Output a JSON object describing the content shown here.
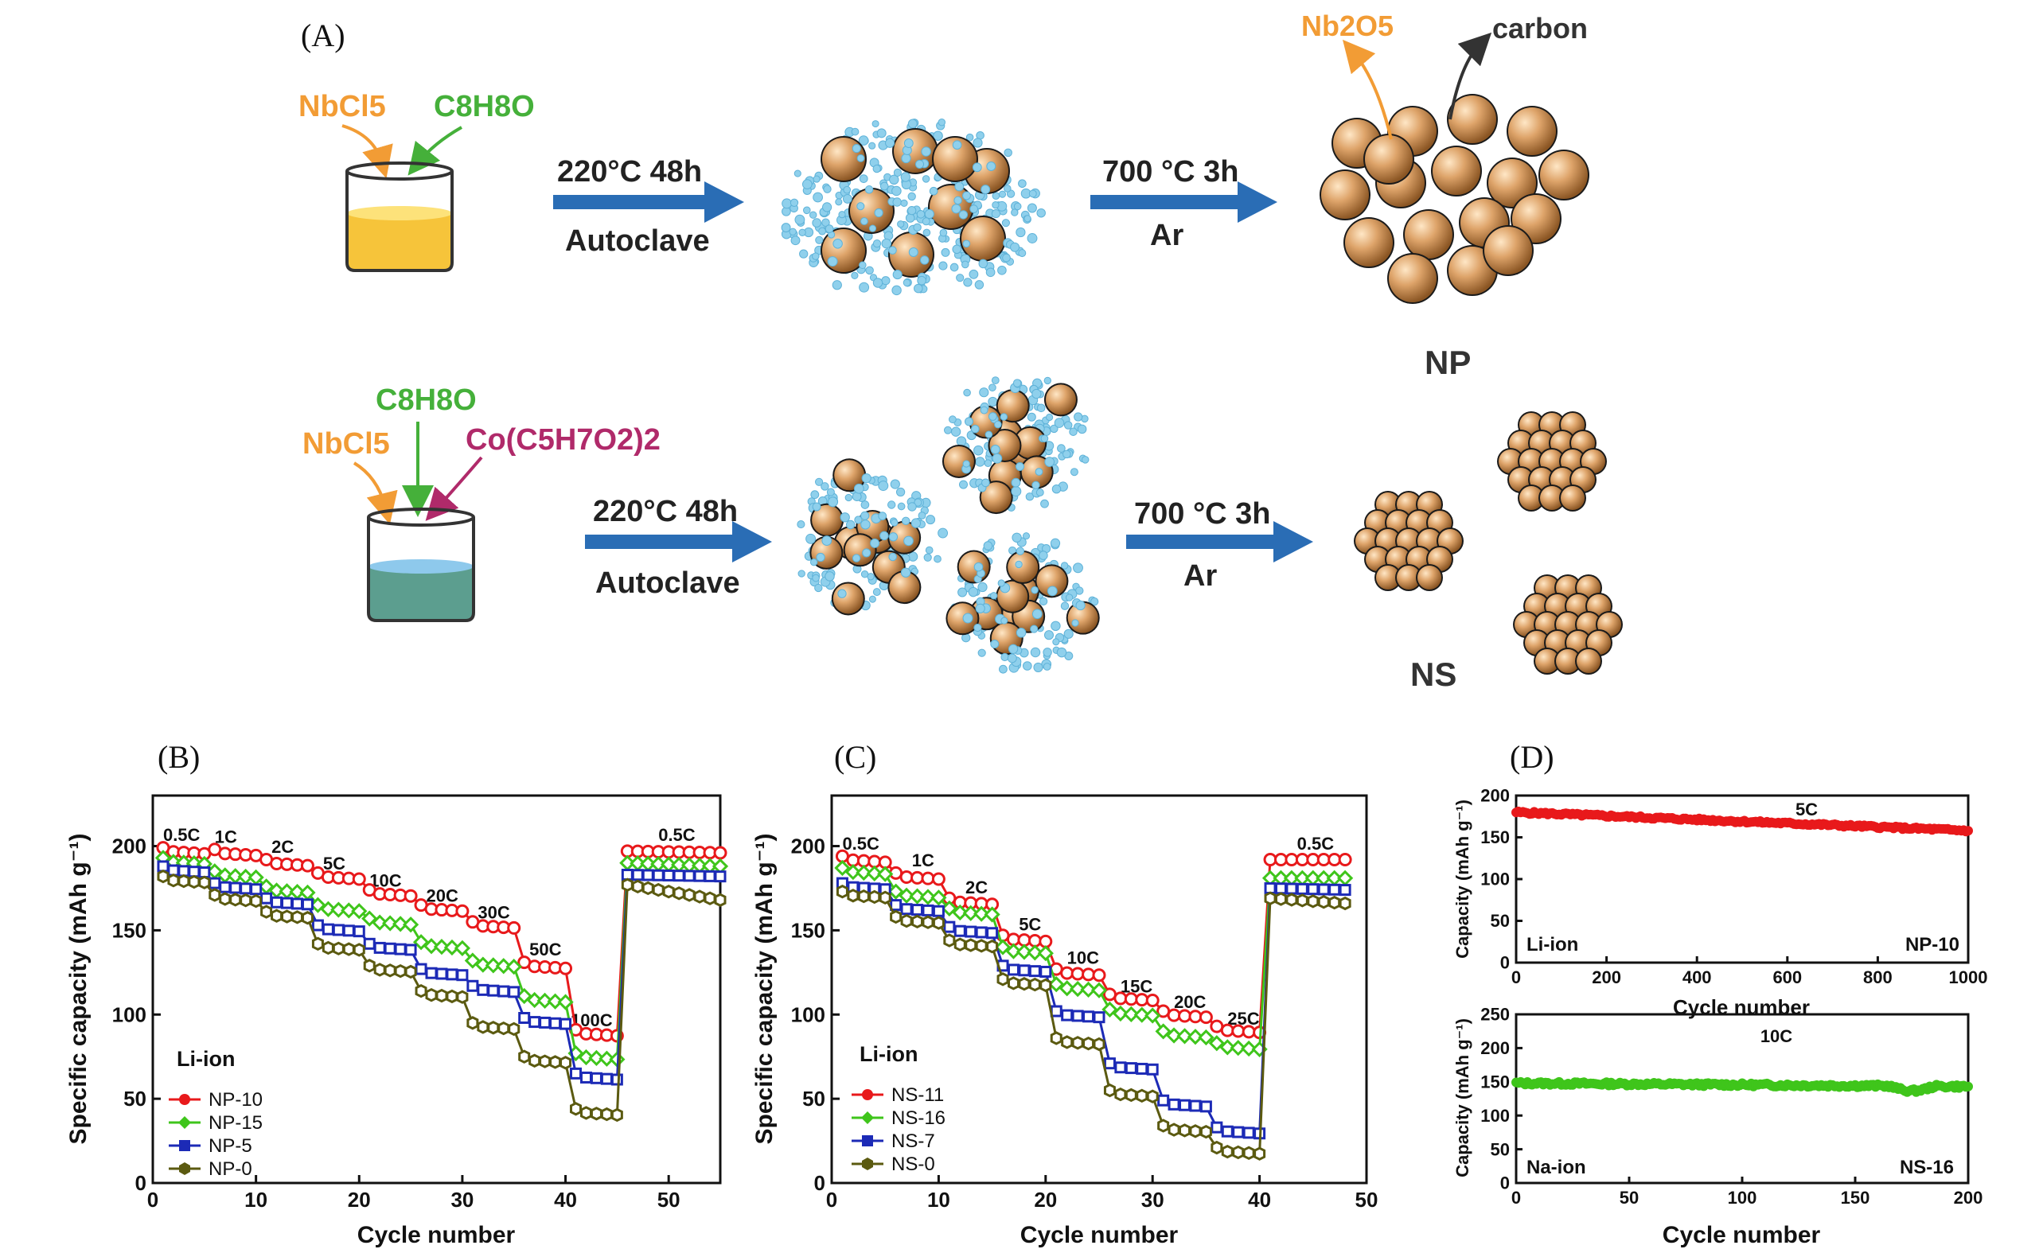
{
  "figure": {
    "panel_labels": [
      "(A)",
      "(B)",
      "(C)",
      "(D)"
    ],
    "np_route": {
      "reagent_1": "NbCl5",
      "reagent_2": "C8H8O",
      "step1_top": "220°C 48h",
      "step1_bottom": "Autoclave",
      "step2_top": "700 °C 3h",
      "step2_bottom": "Ar",
      "label_nb2o5": "Nb2O5",
      "label_carbon": "carbon",
      "product": "NP"
    },
    "ns_route": {
      "reagent_1": "NbCl5",
      "reagent_2": "C8H8O",
      "reagent_3": "Co(C5H7O2)2",
      "step1_top": "220°C 48h",
      "step1_bottom": "Autoclave",
      "step2_top": "700 °C 3h",
      "step2_bottom": "Ar",
      "product": "NS"
    },
    "colors": {
      "red": "#e8191b",
      "green": "#3fc51b",
      "blue": "#1c2ab6",
      "olive": "#5b5a10",
      "orange": "#f29c35",
      "arrow_blue": "#2a6db5",
      "magenta": "#b02a6a",
      "flow_green": "#45b03a",
      "particle": "#d9a46a"
    }
  },
  "chart_data": [
    {
      "id": "B",
      "type": "line",
      "xlabel": "Cycle number",
      "ylabel": "Specific capacity (mAh g⁻¹)",
      "xlim": [
        0,
        55
      ],
      "ylim": [
        0,
        230
      ],
      "xticks": [
        "0",
        "10",
        "20",
        "30",
        "40",
        "50"
      ],
      "yticks": [
        "0",
        "50",
        "100",
        "150",
        "200"
      ],
      "legend_title": "Li-ion",
      "rate_labels": [
        {
          "text": "0.5C",
          "x": 1,
          "y": 203
        },
        {
          "text": "1C",
          "x": 6,
          "y": 202
        },
        {
          "text": "2C",
          "x": 11.5,
          "y": 196
        },
        {
          "text": "5C",
          "x": 16.5,
          "y": 186
        },
        {
          "text": "10C",
          "x": 21,
          "y": 176
        },
        {
          "text": "20C",
          "x": 26.5,
          "y": 167
        },
        {
          "text": "30C",
          "x": 31.5,
          "y": 157
        },
        {
          "text": "50C",
          "x": 36.5,
          "y": 135
        },
        {
          "text": "100C",
          "x": 40.5,
          "y": 93
        },
        {
          "text": "0.5C",
          "x": 49,
          "y": 203
        }
      ],
      "steps_end": 45,
      "recovery_cycles": [
        46,
        55
      ],
      "series": [
        {
          "name": "NP-10",
          "color": "#e8191b",
          "marker": "circle",
          "steps": [
            197,
            196,
            190,
            182,
            172,
            163,
            153,
            129,
            89
          ],
          "recovery": [
            197,
            196
          ]
        },
        {
          "name": "NP-15",
          "color": "#3fc51b",
          "marker": "diamond",
          "steps": [
            191,
            183,
            174,
            163,
            155,
            141,
            130,
            109,
            75
          ],
          "recovery": [
            190,
            188
          ]
        },
        {
          "name": "NP-5",
          "color": "#1c2ab6",
          "marker": "square",
          "steps": [
            186,
            176,
            167,
            151,
            140,
            125,
            115,
            96,
            63
          ],
          "recovery": [
            183,
            182
          ]
        },
        {
          "name": "NP-0",
          "color": "#5b5a10",
          "marker": "hexagon",
          "steps": [
            180,
            169,
            159,
            140,
            127,
            112,
            93,
            73,
            42
          ],
          "recovery": [
            177,
            168
          ]
        }
      ]
    },
    {
      "id": "C",
      "type": "line",
      "xlabel": "Cycle number",
      "ylabel": "Specific capacity (mAh g⁻¹)",
      "xlim": [
        0,
        50
      ],
      "ylim": [
        0,
        230
      ],
      "xticks": [
        "0",
        "10",
        "20",
        "30",
        "40",
        "50"
      ],
      "yticks": [
        "0",
        "50",
        "100",
        "150",
        "200"
      ],
      "legend_title": "Li-ion",
      "rate_labels": [
        {
          "text": "0.5C",
          "x": 1,
          "y": 198
        },
        {
          "text": "1C",
          "x": 7.5,
          "y": 188
        },
        {
          "text": "2C",
          "x": 12.5,
          "y": 172
        },
        {
          "text": "5C",
          "x": 17.5,
          "y": 150
        },
        {
          "text": "10C",
          "x": 22,
          "y": 130
        },
        {
          "text": "15C",
          "x": 27,
          "y": 113
        },
        {
          "text": "20C",
          "x": 32,
          "y": 104
        },
        {
          "text": "25C",
          "x": 37,
          "y": 94
        },
        {
          "text": "0.5C",
          "x": 43.5,
          "y": 198
        }
      ],
      "steps_end": 40,
      "recovery_cycles": [
        41,
        48
      ],
      "series": [
        {
          "name": "NS-11",
          "color": "#e8191b",
          "marker": "circle",
          "steps": [
            192,
            182,
            167,
            145,
            125,
            110,
            100,
            91
          ],
          "recovery": [
            192,
            192
          ]
        },
        {
          "name": "NS-16",
          "color": "#3fc51b",
          "marker": "diamond",
          "steps": [
            185,
            171,
            161,
            138,
            116,
            101,
            88,
            81
          ],
          "recovery": [
            181,
            181
          ]
        },
        {
          "name": "NS-7",
          "color": "#1c2ab6",
          "marker": "square",
          "steps": [
            176,
            163,
            150,
            127,
            100,
            69,
            47,
            31
          ],
          "recovery": [
            175,
            174
          ]
        },
        {
          "name": "NS-0",
          "color": "#5b5a10",
          "marker": "hexagon",
          "steps": [
            171,
            156,
            142,
            119,
            84,
            53,
            32,
            19
          ],
          "recovery": [
            169,
            166
          ]
        }
      ]
    },
    {
      "id": "D-top",
      "type": "scatter",
      "xlabel": "Cycle number",
      "ylabel": "Capacity (mAh g⁻¹)",
      "xlim": [
        0,
        1000
      ],
      "ylim": [
        0,
        200
      ],
      "xticks": [
        "0",
        "200",
        "400",
        "600",
        "800",
        "1000"
      ],
      "yticks": [
        "0",
        "50",
        "100",
        "150",
        "200"
      ],
      "rate": "5C",
      "left_label": "Li-ion",
      "right_label": "NP-10",
      "series": [
        {
          "name": "NP-10",
          "color": "#e8191b",
          "start": 180,
          "end": 158
        }
      ]
    },
    {
      "id": "D-bottom",
      "type": "scatter",
      "xlabel": "Cycle number",
      "ylabel": "Capacity (mAh g⁻¹)",
      "xlim": [
        0,
        200
      ],
      "ylim": [
        0,
        250
      ],
      "xticks": [
        "0",
        "50",
        "100",
        "150",
        "200"
      ],
      "yticks": [
        "0",
        "50",
        "100",
        "150",
        "200",
        "250"
      ],
      "rate": "10C",
      "left_label": "Na-ion",
      "right_label": "NS-16",
      "series": [
        {
          "name": "NS-16",
          "color": "#3fc51b",
          "start": 148,
          "end": 143
        }
      ]
    }
  ]
}
